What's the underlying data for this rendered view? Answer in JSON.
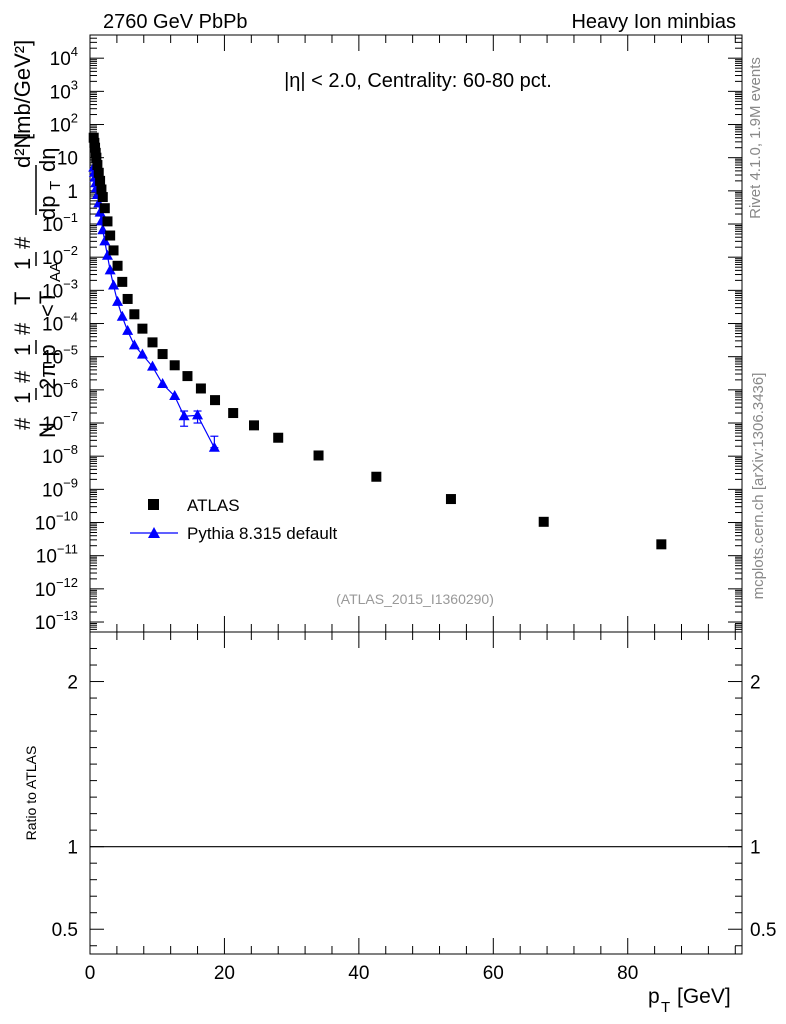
{
  "header": {
    "left_title": "2760 GeV PbPb",
    "right_title": "Heavy Ion minbias"
  },
  "side_labels": {
    "rivet": "Rivet 4.1.0,  1.9M events",
    "mcplots": "mcplots.cern.ch [arXiv:1306.3436]"
  },
  "colors": {
    "data": "#000000",
    "mc": "#0000ff",
    "watermark": "#999999",
    "side_text": "#888888"
  },
  "chart_data": [
    {
      "type": "scatter",
      "panel": "main",
      "annotation": "|η| < 2.0, Centrality: 60-80 pct.",
      "watermark": "(ATLAS_2015_I1360290)",
      "ylabel": "#frac{1}{N} #frac{1}{2π p_T} #frac{1}{<T_AA>} #frac{d²N}{dp_T dη} [mb/GeV²]",
      "ylabel_parts": {
        "frac1_num": "1",
        "frac1_den": "N",
        "frac2_num": "1",
        "frac2_den": "2π p",
        "frac3_num": "1",
        "frac3_den": "<T",
        "sub_AA": "AA",
        "frac4_num": "d²N",
        "frac4_den": "dp",
        "sub_T": "T",
        "deta": "dη",
        "units": "[mb/GeV²]",
        "hash": "#"
      },
      "yscale": "log",
      "ylim": [
        5e-14,
        50000.0
      ],
      "xlim": [
        0,
        97
      ],
      "y_tick_labels": [
        "10^{-13}",
        "10^{-12}",
        "10^{-11}",
        "10^{-10}",
        "10^{-9}",
        "10^{-8}",
        "10^{-7}",
        "10^{-6}",
        "10^{-5}",
        "10^{-4}",
        "10^{-3}",
        "10^{-2}",
        "10^{-1}",
        "1",
        "10",
        "10^{2}",
        "10^{3}",
        "10^{4}"
      ],
      "legend_position": "middle-left",
      "series": [
        {
          "name": "ATLAS",
          "marker": "square",
          "x": [
            0.55,
            0.65,
            0.75,
            0.85,
            0.95,
            1.1,
            1.3,
            1.5,
            1.7,
            1.9,
            2.2,
            2.6,
            3.0,
            3.5,
            4.1,
            4.8,
            5.6,
            6.6,
            7.8,
            9.3,
            10.8,
            12.6,
            14.5,
            16.5,
            18.6,
            21.3,
            24.4,
            28.0,
            34.0,
            42.6,
            53.7,
            67.5,
            85.0
          ],
          "y": [
            40,
            28,
            20,
            14,
            10,
            6.0,
            3.5,
            2.0,
            1.1,
            0.65,
            0.3,
            0.12,
            0.045,
            0.016,
            0.0055,
            0.0018,
            0.00055,
            0.00019,
            7e-05,
            2.7e-05,
            1.2e-05,
            5.5e-06,
            2.6e-06,
            1.1e-06,
            4.9e-07,
            2e-07,
            8.5e-08,
            3.6e-08,
            1.05e-08,
            2.4e-09,
            5.1e-10,
            1.05e-10,
            2.2e-11
          ]
        },
        {
          "name": "Pythia 8.315 default",
          "marker": "triangle",
          "line": true,
          "x": [
            0.55,
            0.65,
            0.75,
            0.85,
            0.95,
            1.1,
            1.3,
            1.5,
            1.7,
            1.9,
            2.2,
            2.6,
            3.0,
            3.5,
            4.1,
            4.8,
            5.6,
            6.6,
            7.8,
            9.3,
            10.8,
            12.6,
            14.0,
            16.0,
            18.5
          ],
          "y": [
            5.0,
            3.5,
            2.5,
            1.7,
            1.2,
            0.75,
            0.42,
            0.22,
            0.12,
            0.065,
            0.03,
            0.011,
            0.004,
            0.0014,
            0.00045,
            0.00016,
            6e-05,
            2.2e-05,
            1.15e-05,
            5e-06,
            1.5e-06,
            6.5e-07,
            1.6e-07,
            1.7e-07,
            1.8e-08
          ],
          "yerr_low": [
            0,
            0,
            0,
            0,
            0,
            0,
            0,
            0,
            0,
            0,
            0,
            0,
            0,
            0,
            0,
            0,
            0,
            0,
            0,
            0,
            0,
            0,
            8e-08,
            7e-08,
            1e-15
          ],
          "yerr_high": [
            0,
            0,
            0,
            0,
            0,
            0,
            0,
            0,
            0,
            0,
            0,
            0,
            0,
            0,
            0,
            0,
            0,
            0,
            0,
            0,
            0,
            0,
            7e-08,
            6e-08,
            2.2e-08
          ]
        }
      ]
    },
    {
      "type": "line",
      "panel": "ratio",
      "ylabel": "Ratio to ATLAS",
      "xlabel": "p_T [GeV]",
      "xlabel_main": "p",
      "xlabel_sub": "T",
      "xlabel_unit": "[GeV]",
      "ylim": [
        0.35,
        2.3
      ],
      "xlim": [
        0,
        97
      ],
      "y_ticks": [
        0.5,
        1,
        2
      ],
      "y_tick_labels": [
        "0.5",
        "1",
        "2"
      ],
      "x_ticks": [
        0,
        20,
        40,
        60,
        80
      ],
      "x_tick_labels": [
        "0",
        "20",
        "40",
        "60",
        "80"
      ],
      "reference_line": 1
    }
  ]
}
